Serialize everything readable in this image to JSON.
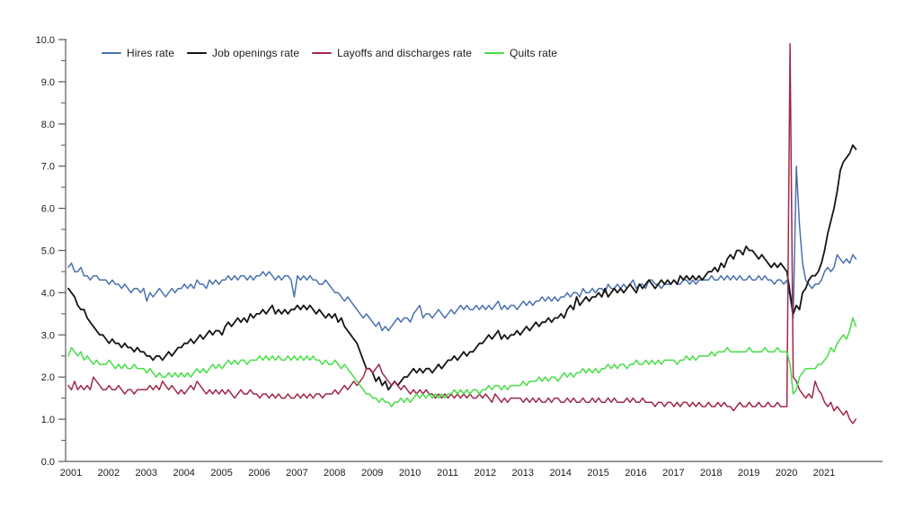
{
  "figure": {
    "background_color": "#ffffff",
    "axis_color": "#595959",
    "text_color": "#1a1a1a"
  },
  "chart_data": {
    "type": "line",
    "title": "",
    "xlabel": "",
    "ylabel": "",
    "frequency": "monthly",
    "x_start": "2001-01",
    "x_end": "2021-12",
    "ylim": [
      0.0,
      10.0
    ],
    "y_major_step": 1.0,
    "y_minor_step": 0.5,
    "grid": false,
    "legend_position": "top-left",
    "y_tick_labels": [
      "0.0",
      "1.0",
      "2.0",
      "3.0",
      "4.0",
      "5.0",
      "6.0",
      "7.0",
      "8.0",
      "9.0",
      "10.0"
    ],
    "x_tick_labels": [
      "2001",
      "2002",
      "2003",
      "2004",
      "2005",
      "2006",
      "2007",
      "2008",
      "2009",
      "2010",
      "2011",
      "2012",
      "2013",
      "2014",
      "2015",
      "2016",
      "2017",
      "2018",
      "2019",
      "2020",
      "2021"
    ],
    "series": [
      {
        "name": "Hires rate",
        "color": "#4a70b0",
        "values": [
          4.6,
          4.7,
          4.5,
          4.5,
          4.6,
          4.4,
          4.4,
          4.3,
          4.4,
          4.4,
          4.3,
          4.3,
          4.3,
          4.2,
          4.3,
          4.2,
          4.2,
          4.1,
          4.2,
          4.1,
          4.0,
          4.1,
          4.1,
          4.0,
          4.1,
          3.8,
          4.0,
          3.9,
          4.0,
          4.1,
          4.0,
          3.9,
          4.0,
          4.1,
          4.0,
          4.1,
          4.1,
          4.2,
          4.1,
          4.2,
          4.1,
          4.3,
          4.2,
          4.2,
          4.1,
          4.3,
          4.2,
          4.3,
          4.2,
          4.3,
          4.3,
          4.4,
          4.3,
          4.4,
          4.3,
          4.4,
          4.4,
          4.3,
          4.4,
          4.3,
          4.4,
          4.4,
          4.5,
          4.4,
          4.5,
          4.4,
          4.3,
          4.4,
          4.3,
          4.4,
          4.4,
          4.3,
          3.9,
          4.4,
          4.3,
          4.4,
          4.3,
          4.4,
          4.3,
          4.3,
          4.2,
          4.2,
          4.3,
          4.2,
          4.1,
          4.0,
          4.0,
          3.9,
          3.8,
          3.9,
          3.8,
          3.7,
          3.6,
          3.5,
          3.4,
          3.5,
          3.4,
          3.3,
          3.2,
          3.3,
          3.1,
          3.2,
          3.1,
          3.2,
          3.3,
          3.4,
          3.3,
          3.4,
          3.4,
          3.3,
          3.5,
          3.6,
          3.7,
          3.4,
          3.5,
          3.5,
          3.4,
          3.5,
          3.6,
          3.5,
          3.4,
          3.5,
          3.6,
          3.5,
          3.6,
          3.7,
          3.6,
          3.7,
          3.6,
          3.6,
          3.7,
          3.6,
          3.7,
          3.6,
          3.7,
          3.6,
          3.7,
          3.8,
          3.6,
          3.7,
          3.6,
          3.7,
          3.7,
          3.6,
          3.7,
          3.8,
          3.7,
          3.8,
          3.7,
          3.8,
          3.8,
          3.9,
          3.8,
          3.9,
          3.8,
          3.9,
          3.8,
          3.9,
          3.9,
          4.0,
          3.9,
          4.0,
          4.0,
          3.9,
          4.1,
          4.0,
          4.0,
          4.1,
          4.0,
          4.1,
          4.1,
          4.0,
          4.2,
          4.1,
          4.1,
          4.2,
          4.1,
          4.2,
          4.1,
          4.2,
          4.3,
          4.1,
          4.2,
          4.2,
          4.1,
          4.3,
          4.3,
          4.2,
          4.2,
          4.1,
          4.2,
          4.2,
          4.2,
          4.3,
          4.2,
          4.2,
          4.3,
          4.3,
          4.2,
          4.3,
          4.2,
          4.3,
          4.3,
          4.3,
          4.3,
          4.4,
          4.3,
          4.3,
          4.4,
          4.3,
          4.4,
          4.3,
          4.4,
          4.3,
          4.4,
          4.3,
          4.3,
          4.4,
          4.3,
          4.3,
          4.4,
          4.3,
          4.4,
          4.3,
          4.3,
          4.2,
          4.3,
          4.3,
          4.2,
          4.3,
          3.9,
          3.4,
          7.0,
          5.6,
          4.7,
          4.3,
          4.2,
          4.1,
          4.2,
          4.2,
          4.3,
          4.5,
          4.6,
          4.5,
          4.6,
          4.9,
          4.8,
          4.7,
          4.8,
          4.7,
          4.9,
          4.8
        ]
      },
      {
        "name": "Job openings rate",
        "color": "#161616",
        "values": [
          4.1,
          4.0,
          3.9,
          3.7,
          3.6,
          3.6,
          3.4,
          3.3,
          3.2,
          3.1,
          3.0,
          3.0,
          2.9,
          2.8,
          2.9,
          2.8,
          2.8,
          2.7,
          2.8,
          2.7,
          2.7,
          2.6,
          2.7,
          2.6,
          2.6,
          2.5,
          2.5,
          2.4,
          2.5,
          2.5,
          2.4,
          2.5,
          2.6,
          2.5,
          2.6,
          2.7,
          2.7,
          2.8,
          2.8,
          2.9,
          2.8,
          2.9,
          3.0,
          2.9,
          3.0,
          3.1,
          3.0,
          3.1,
          3.1,
          3.0,
          3.2,
          3.3,
          3.2,
          3.3,
          3.4,
          3.3,
          3.4,
          3.3,
          3.5,
          3.4,
          3.5,
          3.5,
          3.6,
          3.5,
          3.6,
          3.7,
          3.5,
          3.6,
          3.5,
          3.6,
          3.5,
          3.6,
          3.6,
          3.7,
          3.6,
          3.7,
          3.6,
          3.7,
          3.6,
          3.5,
          3.6,
          3.5,
          3.4,
          3.5,
          3.4,
          3.5,
          3.3,
          3.4,
          3.2,
          3.1,
          3.0,
          2.9,
          2.8,
          2.6,
          2.4,
          2.2,
          2.2,
          2.1,
          1.9,
          2.0,
          1.8,
          1.9,
          1.7,
          1.8,
          1.9,
          1.8,
          1.9,
          2.0,
          2.0,
          2.1,
          2.2,
          2.1,
          2.2,
          2.1,
          2.2,
          2.2,
          2.1,
          2.2,
          2.3,
          2.2,
          2.3,
          2.4,
          2.4,
          2.5,
          2.4,
          2.5,
          2.6,
          2.5,
          2.6,
          2.6,
          2.7,
          2.8,
          2.8,
          2.9,
          3.0,
          2.9,
          3.0,
          3.1,
          2.9,
          3.0,
          2.9,
          3.0,
          3.0,
          3.1,
          3.0,
          3.1,
          3.2,
          3.1,
          3.2,
          3.3,
          3.2,
          3.3,
          3.3,
          3.4,
          3.3,
          3.4,
          3.4,
          3.5,
          3.4,
          3.6,
          3.7,
          3.6,
          3.9,
          3.7,
          3.8,
          3.9,
          3.8,
          3.9,
          3.9,
          4.0,
          3.9,
          4.1,
          3.9,
          4.0,
          4.1,
          4.0,
          4.1,
          4.0,
          4.1,
          4.2,
          4.1,
          4.0,
          4.2,
          4.1,
          4.2,
          4.3,
          4.2,
          4.1,
          4.2,
          4.3,
          4.2,
          4.3,
          4.2,
          4.3,
          4.2,
          4.4,
          4.3,
          4.4,
          4.3,
          4.4,
          4.3,
          4.4,
          4.3,
          4.4,
          4.5,
          4.5,
          4.6,
          4.5,
          4.7,
          4.6,
          4.8,
          4.9,
          4.8,
          5.0,
          5.0,
          4.9,
          5.1,
          5.0,
          5.0,
          4.9,
          4.8,
          4.9,
          4.8,
          4.7,
          4.6,
          4.7,
          4.6,
          4.7,
          4.6,
          4.5,
          4.0,
          3.5,
          3.7,
          3.6,
          4.0,
          4.1,
          4.3,
          4.4,
          4.4,
          4.5,
          4.7,
          5.0,
          5.4,
          5.7,
          6.0,
          6.4,
          6.9,
          7.1,
          7.2,
          7.3,
          7.5,
          7.4
        ]
      },
      {
        "name": "Layoffs and discharges rate",
        "color": "#a12848",
        "values": [
          1.8,
          1.7,
          1.9,
          1.7,
          1.8,
          1.7,
          1.8,
          1.7,
          2.0,
          1.9,
          1.8,
          1.7,
          1.7,
          1.8,
          1.7,
          1.7,
          1.8,
          1.7,
          1.6,
          1.7,
          1.7,
          1.6,
          1.7,
          1.7,
          1.7,
          1.7,
          1.8,
          1.7,
          1.8,
          1.7,
          1.9,
          1.8,
          1.7,
          1.8,
          1.7,
          1.6,
          1.7,
          1.6,
          1.7,
          1.8,
          1.7,
          1.9,
          1.8,
          1.7,
          1.6,
          1.7,
          1.6,
          1.7,
          1.6,
          1.7,
          1.6,
          1.7,
          1.6,
          1.5,
          1.6,
          1.7,
          1.6,
          1.6,
          1.7,
          1.6,
          1.6,
          1.5,
          1.6,
          1.6,
          1.5,
          1.6,
          1.5,
          1.6,
          1.5,
          1.5,
          1.6,
          1.5,
          1.5,
          1.6,
          1.5,
          1.6,
          1.5,
          1.6,
          1.5,
          1.6,
          1.6,
          1.5,
          1.6,
          1.6,
          1.6,
          1.7,
          1.6,
          1.7,
          1.8,
          1.7,
          1.8,
          1.9,
          1.8,
          1.9,
          2.0,
          2.2,
          2.2,
          2.1,
          2.2,
          2.3,
          2.1,
          2.0,
          1.9,
          1.8,
          1.9,
          1.8,
          1.7,
          1.8,
          1.7,
          1.6,
          1.7,
          1.6,
          1.7,
          1.6,
          1.7,
          1.6,
          1.6,
          1.5,
          1.6,
          1.5,
          1.6,
          1.5,
          1.6,
          1.5,
          1.6,
          1.5,
          1.6,
          1.5,
          1.6,
          1.5,
          1.5,
          1.6,
          1.5,
          1.6,
          1.5,
          1.4,
          1.6,
          1.5,
          1.4,
          1.5,
          1.4,
          1.5,
          1.5,
          1.5,
          1.5,
          1.4,
          1.5,
          1.4,
          1.5,
          1.4,
          1.5,
          1.4,
          1.4,
          1.5,
          1.4,
          1.5,
          1.5,
          1.4,
          1.4,
          1.5,
          1.4,
          1.5,
          1.4,
          1.4,
          1.5,
          1.4,
          1.4,
          1.5,
          1.4,
          1.5,
          1.4,
          1.4,
          1.5,
          1.4,
          1.5,
          1.4,
          1.4,
          1.4,
          1.5,
          1.4,
          1.5,
          1.4,
          1.4,
          1.5,
          1.4,
          1.4,
          1.4,
          1.3,
          1.4,
          1.4,
          1.3,
          1.4,
          1.4,
          1.3,
          1.4,
          1.3,
          1.4,
          1.4,
          1.3,
          1.4,
          1.3,
          1.4,
          1.3,
          1.3,
          1.4,
          1.3,
          1.3,
          1.4,
          1.3,
          1.4,
          1.3,
          1.3,
          1.2,
          1.3,
          1.4,
          1.3,
          1.3,
          1.4,
          1.3,
          1.3,
          1.4,
          1.3,
          1.3,
          1.4,
          1.3,
          1.3,
          1.4,
          1.3,
          1.3,
          1.3,
          9.9,
          2.0,
          1.9,
          1.7,
          1.6,
          1.5,
          1.6,
          1.5,
          1.9,
          1.7,
          1.6,
          1.4,
          1.3,
          1.4,
          1.2,
          1.3,
          1.2,
          1.1,
          1.2,
          1.0,
          0.9,
          1.0
        ]
      },
      {
        "name": "Quits rate",
        "color": "#47dd47",
        "values": [
          2.5,
          2.7,
          2.6,
          2.5,
          2.6,
          2.4,
          2.5,
          2.4,
          2.3,
          2.4,
          2.3,
          2.3,
          2.3,
          2.4,
          2.3,
          2.2,
          2.3,
          2.2,
          2.3,
          2.2,
          2.2,
          2.3,
          2.2,
          2.2,
          2.2,
          2.1,
          2.2,
          2.1,
          2.0,
          2.1,
          2.0,
          2.0,
          2.1,
          2.0,
          2.1,
          2.0,
          2.1,
          2.0,
          2.1,
          2.0,
          2.1,
          2.2,
          2.1,
          2.2,
          2.1,
          2.2,
          2.3,
          2.2,
          2.3,
          2.2,
          2.3,
          2.4,
          2.3,
          2.4,
          2.3,
          2.4,
          2.4,
          2.3,
          2.4,
          2.4,
          2.4,
          2.5,
          2.4,
          2.5,
          2.4,
          2.5,
          2.4,
          2.5,
          2.4,
          2.4,
          2.5,
          2.4,
          2.5,
          2.4,
          2.5,
          2.4,
          2.5,
          2.4,
          2.5,
          2.4,
          2.4,
          2.3,
          2.4,
          2.3,
          2.3,
          2.4,
          2.3,
          2.2,
          2.3,
          2.2,
          2.1,
          2.0,
          1.9,
          1.8,
          1.7,
          1.6,
          1.6,
          1.5,
          1.5,
          1.4,
          1.5,
          1.4,
          1.4,
          1.3,
          1.4,
          1.4,
          1.5,
          1.4,
          1.5,
          1.4,
          1.5,
          1.6,
          1.5,
          1.6,
          1.5,
          1.6,
          1.5,
          1.6,
          1.5,
          1.6,
          1.5,
          1.6,
          1.6,
          1.7,
          1.6,
          1.7,
          1.6,
          1.7,
          1.6,
          1.7,
          1.7,
          1.6,
          1.7,
          1.7,
          1.8,
          1.7,
          1.8,
          1.8,
          1.7,
          1.8,
          1.7,
          1.8,
          1.8,
          1.8,
          1.8,
          1.9,
          1.8,
          1.9,
          1.9,
          1.9,
          2.0,
          1.9,
          2.0,
          1.9,
          2.0,
          2.0,
          1.9,
          2.0,
          2.1,
          2.0,
          2.1,
          2.0,
          2.1,
          2.1,
          2.2,
          2.1,
          2.2,
          2.1,
          2.2,
          2.1,
          2.2,
          2.2,
          2.3,
          2.2,
          2.3,
          2.2,
          2.3,
          2.3,
          2.2,
          2.3,
          2.3,
          2.4,
          2.3,
          2.3,
          2.4,
          2.3,
          2.4,
          2.3,
          2.4,
          2.3,
          2.4,
          2.4,
          2.4,
          2.4,
          2.3,
          2.4,
          2.4,
          2.5,
          2.4,
          2.5,
          2.4,
          2.5,
          2.5,
          2.5,
          2.5,
          2.6,
          2.5,
          2.6,
          2.6,
          2.6,
          2.7,
          2.6,
          2.6,
          2.6,
          2.6,
          2.6,
          2.6,
          2.7,
          2.6,
          2.6,
          2.6,
          2.6,
          2.7,
          2.6,
          2.6,
          2.6,
          2.7,
          2.6,
          2.6,
          2.6,
          2.3,
          1.6,
          1.7,
          2.0,
          2.1,
          2.2,
          2.2,
          2.2,
          2.2,
          2.3,
          2.3,
          2.4,
          2.5,
          2.7,
          2.6,
          2.8,
          2.9,
          3.0,
          2.9,
          3.1,
          3.4,
          3.2
        ]
      }
    ]
  }
}
